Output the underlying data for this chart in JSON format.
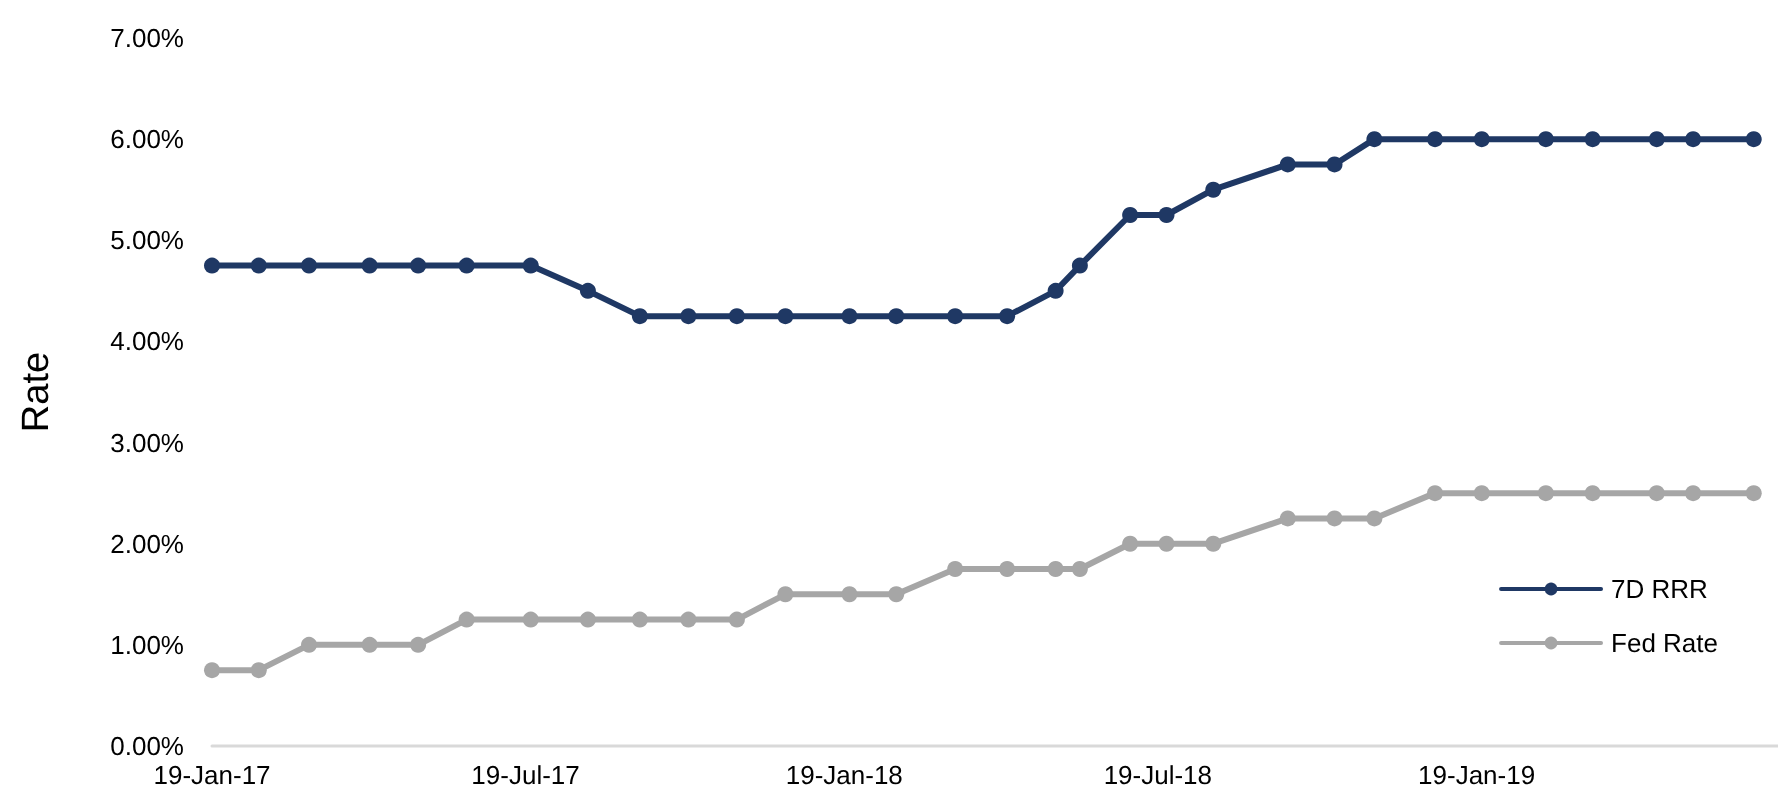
{
  "chart_data": {
    "type": "line",
    "ylabel": "Rate",
    "x": [
      "2017-01-19",
      "2017-02-15",
      "2017-03-16",
      "2017-04-20",
      "2017-05-18",
      "2017-06-15",
      "2017-07-22",
      "2017-08-24",
      "2017-09-23",
      "2017-10-21",
      "2017-11-18",
      "2017-12-16",
      "2018-01-22",
      "2018-02-18",
      "2018-03-24",
      "2018-04-23",
      "2018-05-21",
      "2018-06-04",
      "2018-07-03",
      "2018-07-24",
      "2018-08-20",
      "2018-10-02",
      "2018-10-29",
      "2018-11-21",
      "2018-12-26",
      "2019-01-22",
      "2019-02-28",
      "2019-03-27",
      "2019-05-03",
      "2019-05-24",
      "2019-06-28"
    ],
    "series": [
      {
        "name": "7D RRR",
        "color": "#1f3864",
        "values": [
          4.75,
          4.75,
          4.75,
          4.75,
          4.75,
          4.75,
          4.75,
          4.5,
          4.25,
          4.25,
          4.25,
          4.25,
          4.25,
          4.25,
          4.25,
          4.25,
          4.5,
          4.75,
          5.25,
          5.25,
          5.5,
          5.75,
          5.75,
          6,
          6,
          6,
          6,
          6,
          6,
          6,
          6
        ]
      },
      {
        "name": "Fed Rate",
        "color": "#a6a6a6",
        "values": [
          0.75,
          0.75,
          1,
          1,
          1,
          1.25,
          1.25,
          1.25,
          1.25,
          1.25,
          1.25,
          1.5,
          1.5,
          1.5,
          1.75,
          1.75,
          1.75,
          1.75,
          2,
          2,
          2,
          2.25,
          2.25,
          2.25,
          2.5,
          2.5,
          2.5,
          2.5,
          2.5,
          2.5,
          2.5
        ]
      }
    ],
    "xlim": [
      "2017-01-19",
      "2019-07-12"
    ],
    "xticks": [
      {
        "value": "2017-01-19",
        "label": "19-Jan-17"
      },
      {
        "value": "2017-07-19",
        "label": "19-Jul-17"
      },
      {
        "value": "2018-01-19",
        "label": "19-Jan-18"
      },
      {
        "value": "2018-07-19",
        "label": "19-Jul-18"
      },
      {
        "value": "2019-01-19",
        "label": "19-Jan-19"
      }
    ],
    "ylim": [
      0,
      7
    ],
    "yticks": [
      {
        "value": 0,
        "label": "0.00%"
      },
      {
        "value": 1,
        "label": "1.00%"
      },
      {
        "value": 2,
        "label": "2.00%"
      },
      {
        "value": 3,
        "label": "3.00%"
      },
      {
        "value": 4,
        "label": "4.00%"
      },
      {
        "value": 5,
        "label": "5.00%"
      },
      {
        "value": 6,
        "label": "6.00%"
      },
      {
        "value": 7,
        "label": "7.00%"
      }
    ],
    "grid": false,
    "legend": "bottom right",
    "marker": "circle",
    "line_style": "solid"
  }
}
